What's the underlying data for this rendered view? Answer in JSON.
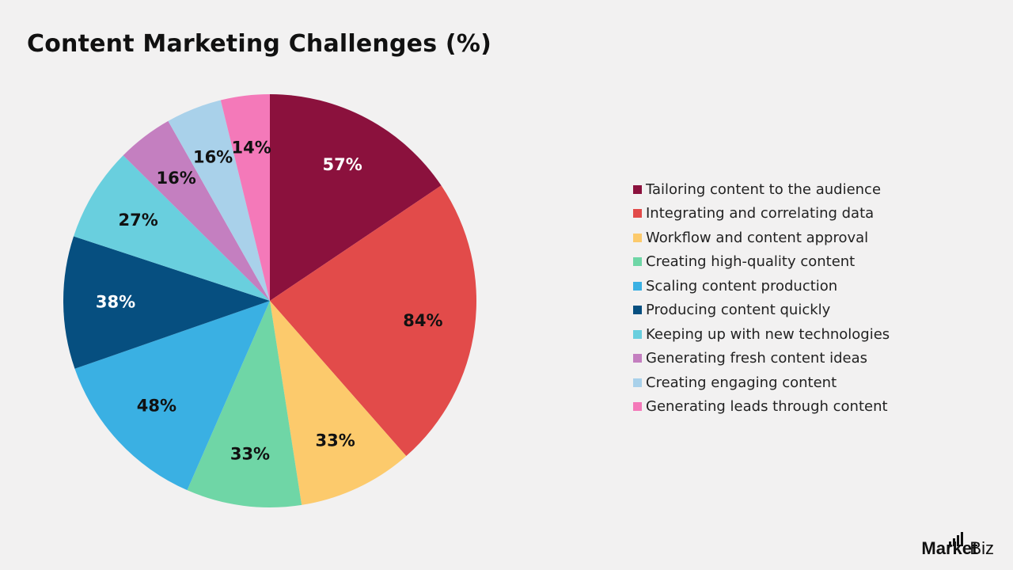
{
  "chart_data": {
    "type": "pie",
    "title": "Content Marketing Challenges (%)",
    "categories": [
      "Tailoring content to the audience",
      "Integrating and correlating data",
      "Workflow and content approval",
      "Creating high-quality content",
      "Scaling content production",
      "Producing content quickly",
      "Keeping up with new technologies",
      "Generating fresh content ideas",
      "Creating engaging content",
      "Generating leads through content"
    ],
    "values": [
      57,
      84,
      33,
      33,
      48,
      38,
      27,
      16,
      16,
      14
    ],
    "labels": [
      "57%",
      "84%",
      "33%",
      "33%",
      "48%",
      "38%",
      "27%",
      "16%",
      "16%",
      "14%"
    ],
    "colors": [
      "#8b113d",
      "#e24b4a",
      "#fcca6c",
      "#6fd6a6",
      "#3ab0e3",
      "#064f80",
      "#69cfde",
      "#c47fc0",
      "#a9d1ea",
      "#f479b9"
    ],
    "label_colors": [
      "#ffffff",
      "#111111",
      "#111111",
      "#111111",
      "#111111",
      "#ffffff",
      "#111111",
      "#111111",
      "#111111",
      "#111111"
    ],
    "legend_position": "right"
  },
  "brand": {
    "name_bold": "Market",
    "name_rest": ".Biz"
  }
}
